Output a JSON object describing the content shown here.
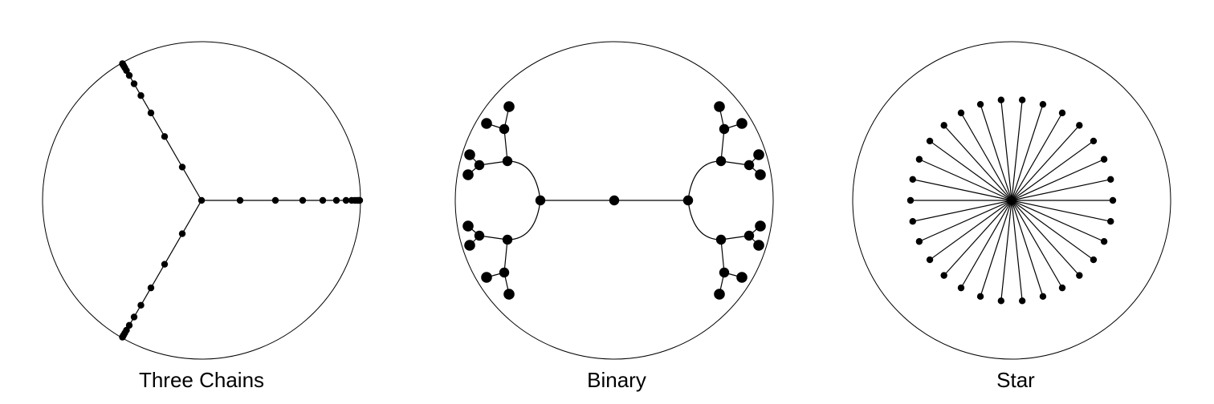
{
  "panels": [
    {
      "id": "three-chains",
      "label": "Three Chains"
    },
    {
      "id": "binary",
      "label": "Binary"
    },
    {
      "id": "star",
      "label": "Star"
    }
  ],
  "colors": {
    "background": "#ffffff",
    "stroke": "#000000",
    "node": "#000000"
  }
}
